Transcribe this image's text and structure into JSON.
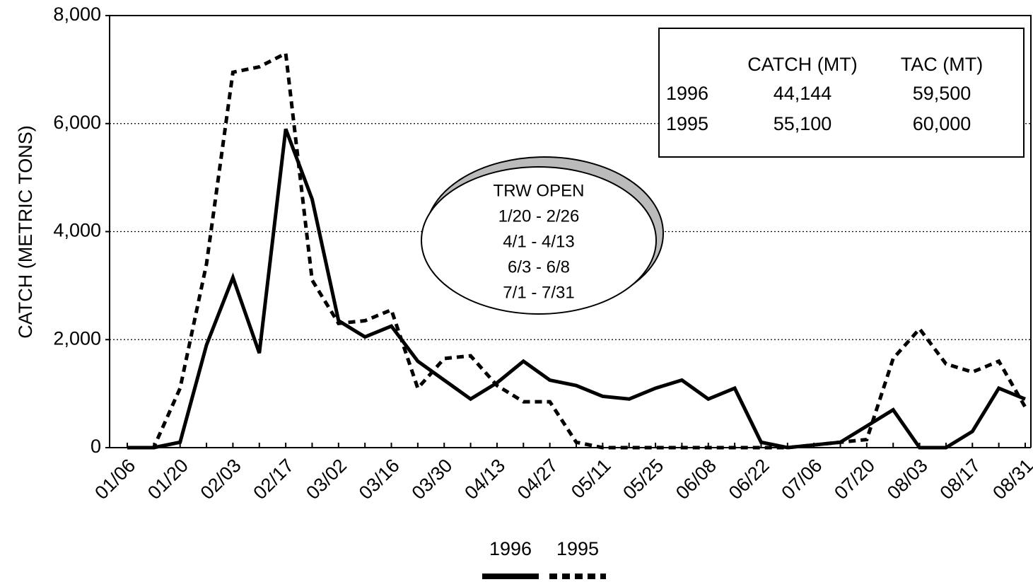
{
  "chart_data": {
    "type": "line",
    "y_label": "CATCH (METRIC TONS)",
    "categories": [
      "01/06",
      null,
      "01/20",
      null,
      "02/03",
      null,
      "02/17",
      null,
      "03/02",
      null,
      "03/16",
      null,
      "03/30",
      null,
      "04/13",
      null,
      "04/27",
      null,
      "05/11",
      null,
      "05/25",
      null,
      "06/08",
      null,
      "06/22",
      null,
      "07/06",
      null,
      "07/20",
      null,
      "08/03",
      null,
      "08/17",
      null,
      "08/31"
    ],
    "series": [
      {
        "name": "1996",
        "color": "#000000",
        "line_style": "solid",
        "values": [
          0,
          0,
          100,
          1900,
          3150,
          1750,
          5900,
          4600,
          2350,
          2050,
          2250,
          1600,
          1250,
          900,
          1200,
          1600,
          1250,
          1150,
          950,
          900,
          1100,
          1250,
          900,
          1100,
          100,
          0,
          50,
          100,
          400,
          700,
          0,
          0,
          300,
          1100,
          900
        ]
      },
      {
        "name": "1995",
        "color": "#000000",
        "line_style": "dashed",
        "values": [
          0,
          0,
          1100,
          3400,
          6950,
          7050,
          7300,
          3100,
          2300,
          2350,
          2550,
          1100,
          1650,
          1700,
          1150,
          850,
          850,
          100,
          0,
          0,
          0,
          0,
          0,
          0,
          0,
          0,
          50,
          100,
          150,
          1650,
          2200,
          1550,
          1400,
          1600,
          750
        ]
      }
    ],
    "ylim": [
      0,
      8000
    ],
    "yticks": [
      0,
      {
        "value": 2000,
        "label": "2,000"
      },
      {
        "value": 4000,
        "label": "4,000"
      },
      {
        "value": 6000,
        "label": "6,000"
      },
      {
        "value": 8000,
        "label": "8,000"
      }
    ],
    "grid": true,
    "legend": "bottom",
    "summary_table": {
      "header": [
        "CATCH (MT)",
        "TAC (MT)"
      ],
      "rows": [
        [
          "1996",
          "44,144",
          "59,500"
        ],
        [
          "1995",
          "55,100",
          "60,000"
        ]
      ]
    },
    "note_lines": [
      "TRW OPEN",
      "1/20 - 2/26",
      "4/1 - 4/13",
      "6/3 - 6/8",
      "7/1 - 7/31"
    ]
  }
}
